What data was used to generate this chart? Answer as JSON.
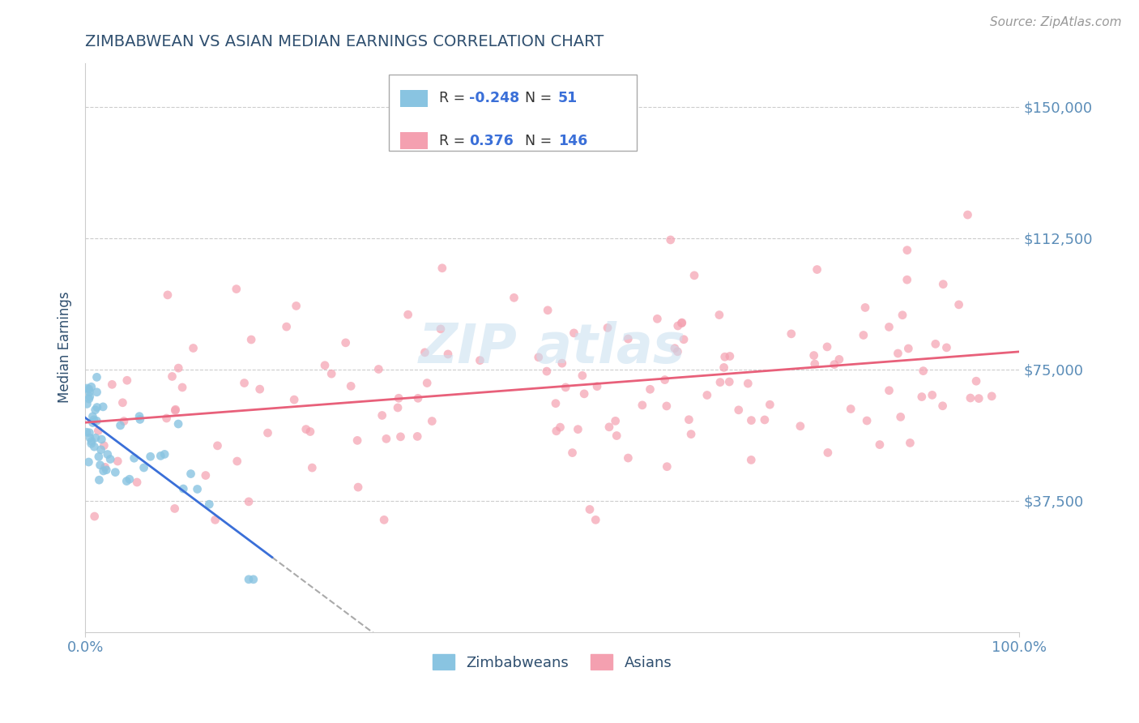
{
  "title": "ZIMBABWEAN VS ASIAN MEDIAN EARNINGS CORRELATION CHART",
  "source_text": "Source: ZipAtlas.com",
  "ylabel": "Median Earnings",
  "xlim": [
    0,
    1.0
  ],
  "ylim": [
    0,
    162500
  ],
  "yticks": [
    0,
    37500,
    75000,
    112500,
    150000
  ],
  "ytick_labels": [
    "",
    "$37,500",
    "$75,000",
    "$112,500",
    "$150,000"
  ],
  "xtick_labels": [
    "0.0%",
    "100.0%"
  ],
  "legend_r1": "-0.248",
  "legend_n1": "51",
  "legend_r2": "0.376",
  "legend_n2": "146",
  "zim_color": "#89c4e1",
  "asian_color": "#f4a0b0",
  "zim_line_color": "#3a6fd8",
  "asian_line_color": "#e8607a",
  "watermark_color": "#c8dff0",
  "background_color": "#ffffff",
  "grid_color": "#cccccc",
  "title_color": "#2f4f6f",
  "tick_color": "#5b8db8",
  "legend_text_color": "#333333",
  "legend_value_color": "#3a6fd8"
}
